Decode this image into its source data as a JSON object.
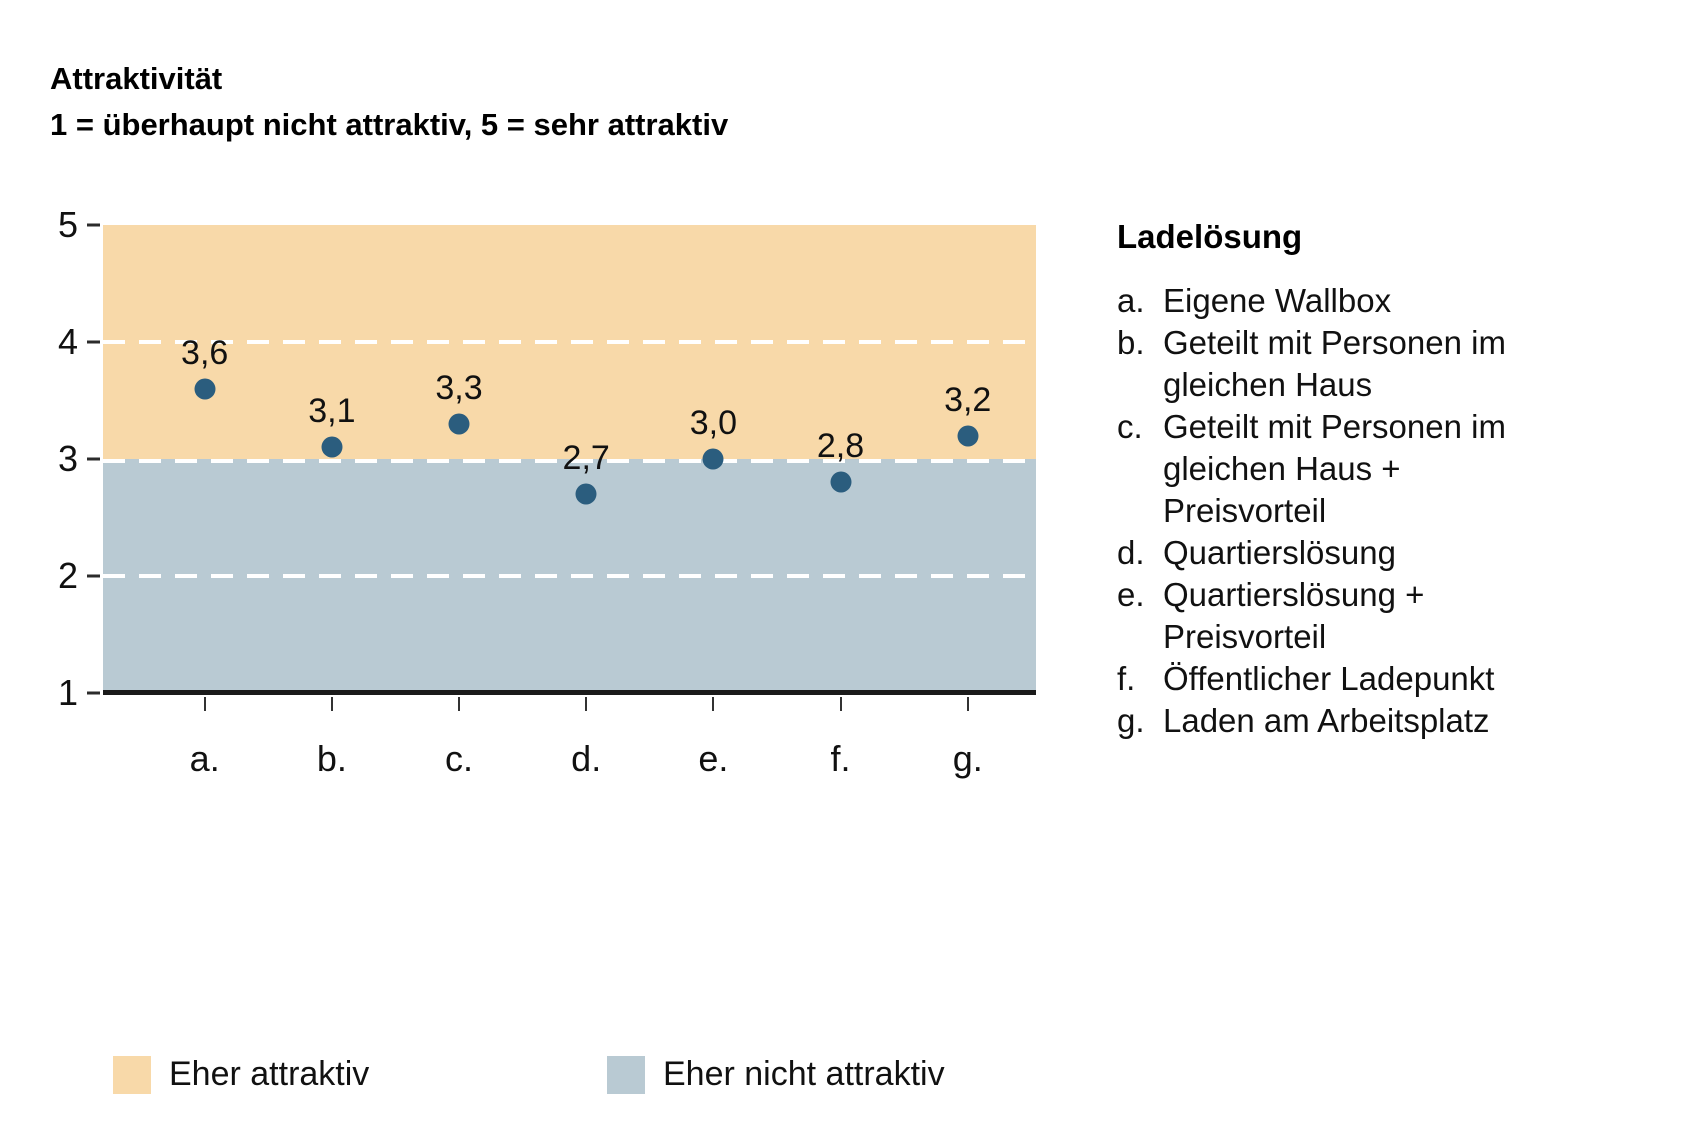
{
  "title": {
    "line1": "Attraktivität",
    "line2": "1 = überhaupt nicht attraktiv, 5 = sehr attraktiv"
  },
  "chart_data": {
    "type": "scatter",
    "categories": [
      "a.",
      "b.",
      "c.",
      "d.",
      "e.",
      "f.",
      "g."
    ],
    "values": [
      3.6,
      3.1,
      3.3,
      2.7,
      3.0,
      2.8,
      3.2
    ],
    "value_labels": [
      "3,6",
      "3,1",
      "3,3",
      "2,7",
      "3,0",
      "2,8",
      "3,2"
    ],
    "title": "Attraktivität",
    "subtitle": "1 = überhaupt nicht attraktiv, 5 = sehr attraktiv",
    "xlabel": "",
    "ylabel": "",
    "ylim": [
      1,
      5
    ],
    "yticks": [
      5,
      4,
      3,
      2,
      1
    ],
    "gridlines_at": [
      4,
      3,
      2
    ],
    "grid_style": "white dashed",
    "bands": [
      {
        "label": "Eher attraktiv",
        "from": 3,
        "to": 5,
        "color": "#f8d9a9"
      },
      {
        "label": "Eher nicht attraktiv",
        "from": 1,
        "to": 3,
        "color": "#b9cad3"
      }
    ],
    "point_color": "#2b5d7e",
    "legend_position": "bottom"
  },
  "side_list": {
    "heading": "Ladelösung",
    "items": [
      {
        "marker": "a.",
        "text": "Eigene Wallbox"
      },
      {
        "marker": "b.",
        "text": "Geteilt mit Personen im\ngleichen Haus"
      },
      {
        "marker": "c.",
        "text": "Geteilt mit Personen im\ngleichen Haus +\nPreisvorteil"
      },
      {
        "marker": "d.",
        "text": "Quartierslösung"
      },
      {
        "marker": "e.",
        "text": "Quartierslösung +\nPreisvorteil"
      },
      {
        "marker": "f.",
        "text": "Öffentlicher Ladepunkt"
      },
      {
        "marker": "g.",
        "text": "Laden am Arbeitsplatz"
      }
    ]
  },
  "legend": [
    {
      "label": "Eher attraktiv",
      "color": "#f8d9a9"
    },
    {
      "label": "Eher nicht attraktiv",
      "color": "#b9cad3"
    }
  ]
}
